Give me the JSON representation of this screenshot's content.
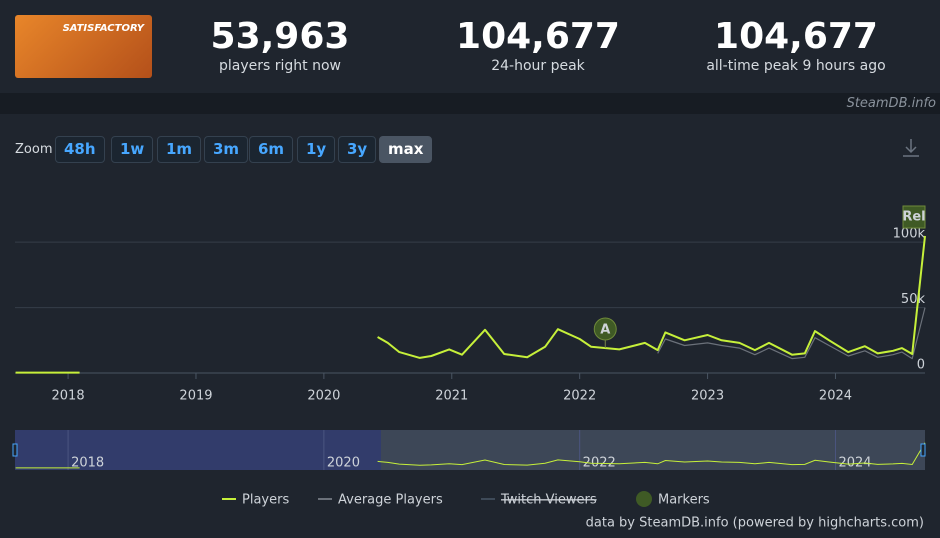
{
  "header": {
    "logo_text": "SATISFACTORY",
    "stats": [
      {
        "value": "53,963",
        "label": "players right now"
      },
      {
        "value": "104,677",
        "label": "24-hour peak"
      },
      {
        "value": "104,677",
        "label": "all-time peak 9 hours ago"
      }
    ],
    "watermark": "SteamDB.info"
  },
  "zoom": {
    "label": "Zoom",
    "buttons": [
      "48h",
      "1w",
      "1m",
      "3m",
      "6m",
      "1y",
      "3y",
      "max"
    ],
    "active": "max"
  },
  "chart_data": {
    "type": "line",
    "x": [
      2017.59,
      2018.09,
      2019.0,
      2020.42,
      2020.5,
      2020.59,
      2020.75,
      2020.84,
      2020.98,
      2021.08,
      2021.26,
      2021.41,
      2021.59,
      2021.73,
      2021.83,
      2022.0,
      2022.09,
      2022.31,
      2022.51,
      2022.61,
      2022.67,
      2022.82,
      2023.0,
      2023.11,
      2023.25,
      2023.37,
      2023.48,
      2023.66,
      2023.76,
      2023.84,
      2023.95,
      2024.1,
      2024.23,
      2024.33,
      2024.45,
      2024.52,
      2024.6,
      2024.7
    ],
    "series": [
      {
        "name": "Players",
        "color": "#c6f03a",
        "values": [
          300,
          300,
          null,
          27500,
          23000,
          16000,
          11500,
          13000,
          18000,
          14000,
          33000,
          14500,
          12000,
          20000,
          33500,
          26000,
          20000,
          18000,
          23000,
          17500,
          31000,
          25000,
          29000,
          25000,
          23000,
          17500,
          23000,
          14000,
          15000,
          32000,
          25000,
          16000,
          20500,
          15000,
          17000,
          19000,
          14500,
          104677
        ]
      },
      {
        "name": "Average Players",
        "color": "#6b717a",
        "values": [
          null,
          null,
          null,
          null,
          null,
          null,
          null,
          null,
          null,
          null,
          null,
          null,
          null,
          null,
          null,
          null,
          null,
          null,
          null,
          15000,
          26000,
          21000,
          23000,
          21000,
          19000,
          14000,
          19000,
          11000,
          12000,
          27000,
          21000,
          13000,
          17000,
          12000,
          14000,
          16000,
          11000,
          50000
        ]
      },
      {
        "name": "Twitch Viewers",
        "color": "#3e4a58",
        "visible": false
      }
    ],
    "markers_legend": "Markers",
    "annotations": [
      {
        "label": "A",
        "x": 2022.2
      },
      {
        "label": "Rel",
        "x": 2024.7
      }
    ],
    "xlim": [
      2017.585,
      2024.7
    ],
    "xticks": [
      2018,
      2019,
      2020,
      2021,
      2022,
      2023,
      2024
    ],
    "ylim": [
      0,
      149000
    ],
    "yticks": [
      0,
      {
        "value": 50000,
        "label": "50k"
      },
      {
        "value": 100000,
        "label": "100k"
      }
    ],
    "grid": true,
    "navigator_xticks": [
      2018,
      2020,
      2022,
      2024
    ],
    "credit": "data by SteamDB.info (powered by highcharts.com)"
  }
}
